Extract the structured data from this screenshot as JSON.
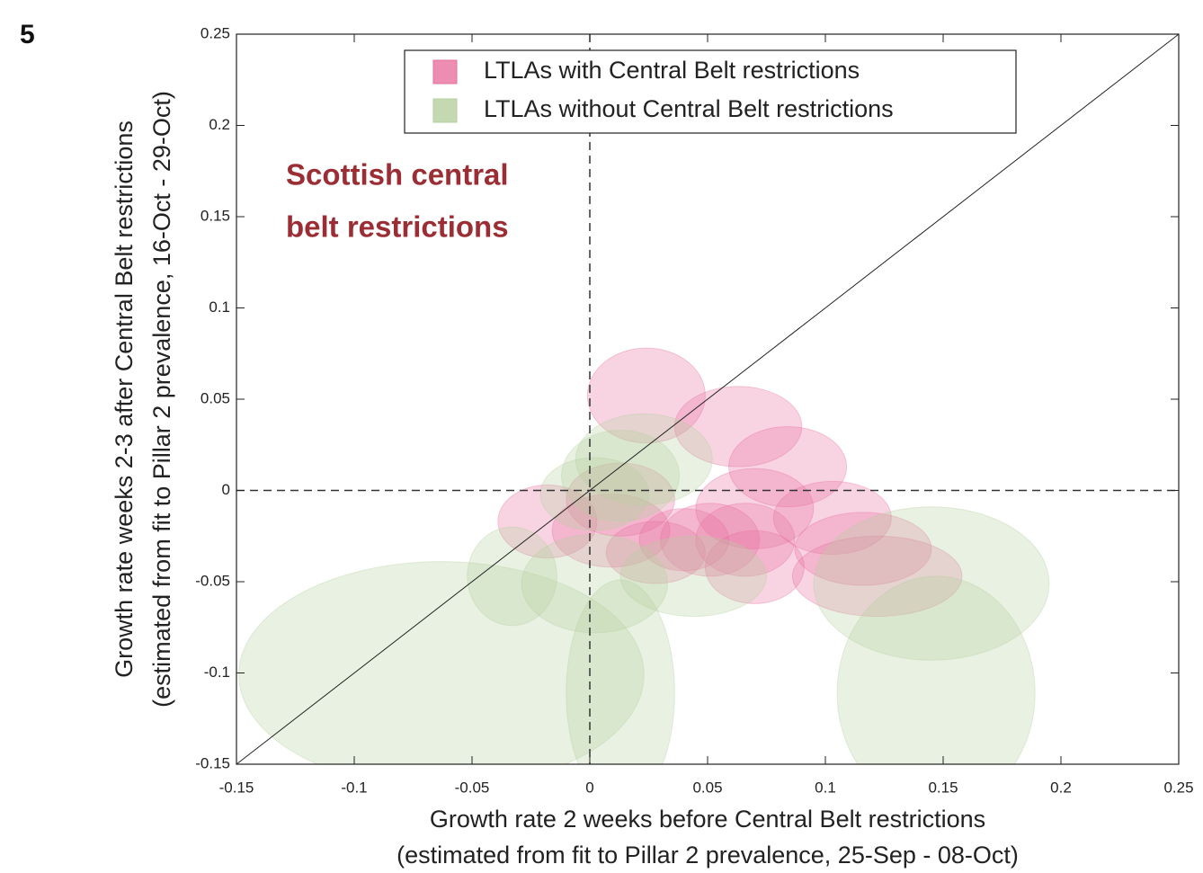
{
  "chart_data": {
    "type": "ellipse",
    "panel_label": "5",
    "annotation": [
      "Scottish central",
      "belt restrictions"
    ],
    "xlabel": [
      "Growth rate 2 weeks before Central Belt restrictions",
      "(estimated from fit to Pillar 2 prevalence, 25-Sep - 08-Oct)"
    ],
    "ylabel": [
      "Growth rate weeks 2-3 after Central Belt restrictions",
      "(estimated from fit to Pillar 2 prevalence, 16-Oct - 29-Oct)"
    ],
    "xlim": [
      -0.15,
      0.25
    ],
    "ylim": [
      -0.15,
      0.25
    ],
    "xticks": [
      -0.15,
      -0.1,
      -0.05,
      0,
      0.05,
      0.1,
      0.15,
      0.2,
      0.25
    ],
    "yticks": [
      -0.15,
      -0.1,
      -0.05,
      0,
      0.05,
      0.1,
      0.15,
      0.2,
      0.25
    ],
    "legend": "upper right",
    "series": [
      {
        "name": "LTLAs with Central Belt restrictions",
        "color": "#e8709e",
        "x": [
          0.024,
          0.063,
          0.084,
          0.07,
          0.103,
          0.116,
          0.122,
          0.013,
          0.009,
          0.028,
          0.051,
          0.066,
          0.07,
          0.04,
          -0.018
        ],
        "y": [
          0.052,
          0.035,
          0.013,
          -0.01,
          -0.015,
          -0.032,
          -0.047,
          -0.005,
          -0.022,
          -0.034,
          -0.027,
          -0.027,
          -0.042,
          -0.027,
          -0.017
        ],
        "rx": [
          0.025,
          0.027,
          0.025,
          0.025,
          0.025,
          0.029,
          0.036,
          0.023,
          0.025,
          0.021,
          0.021,
          0.021,
          0.021,
          0.019,
          0.021
        ],
        "ry": [
          0.026,
          0.022,
          0.022,
          0.022,
          0.02,
          0.02,
          0.022,
          0.02,
          0.02,
          0.017,
          0.02,
          0.02,
          0.02,
          0.017,
          0.02
        ]
      },
      {
        "name": "LTLAs without Central Belt restrictions",
        "color": "#b5cf9f",
        "x": [
          -0.063,
          0.013,
          0.145,
          0.147,
          -0.033,
          0.002,
          0.044,
          0.013,
          0.023,
          0.002
        ],
        "y": [
          -0.101,
          -0.111,
          -0.051,
          -0.111,
          -0.047,
          -0.051,
          -0.047,
          0.008,
          0.017,
          -0.002
        ],
        "rx": [
          0.086,
          0.023,
          0.05,
          0.042,
          0.019,
          0.031,
          0.031,
          0.025,
          0.029,
          0.023
        ],
        "ry": [
          0.062,
          0.062,
          0.042,
          0.064,
          0.027,
          0.027,
          0.022,
          0.025,
          0.025,
          0.02
        ]
      }
    ]
  }
}
